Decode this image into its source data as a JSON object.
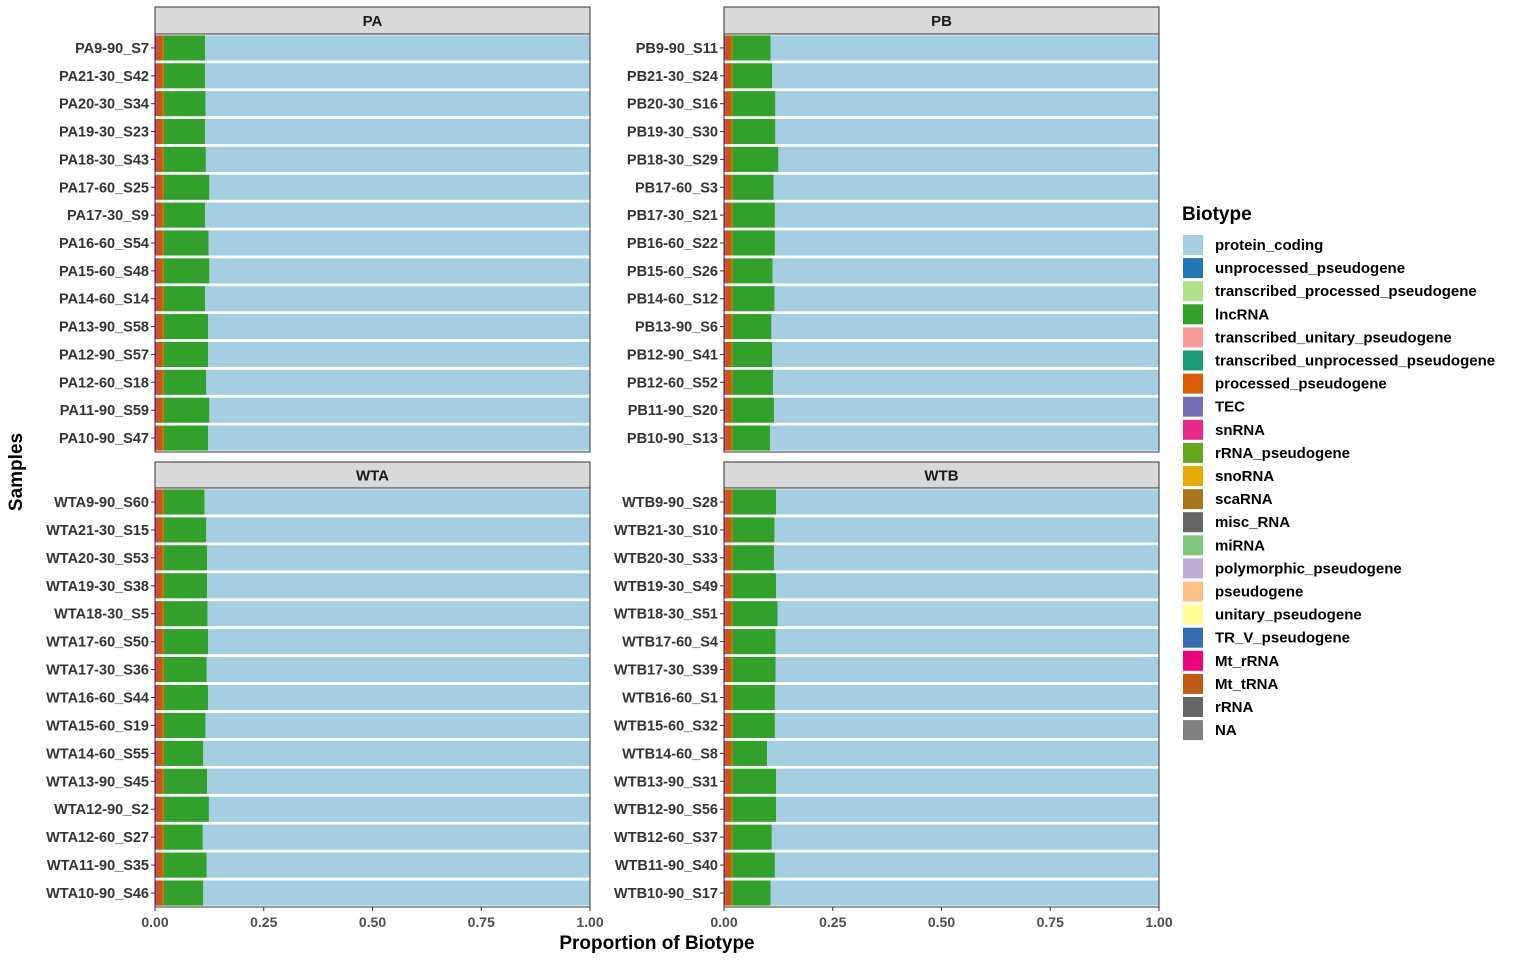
{
  "chart_data": {
    "type": "bar",
    "orientation": "horizontal",
    "stacked": true,
    "xlabel": "Proportion of Biotype",
    "ylabel": "Samples",
    "xlim": [
      0,
      1
    ],
    "x_ticks": [
      "0.00",
      "0.25",
      "0.50",
      "0.75",
      "1.00"
    ],
    "x_tick_values": [
      0,
      0.25,
      0.5,
      0.75,
      1.0
    ],
    "legend": {
      "title": "Biotype",
      "placement": "right",
      "items": [
        {
          "label": "protein_coding",
          "color": "#A6CEE3"
        },
        {
          "label": "unprocessed_pseudogene",
          "color": "#1F78B4"
        },
        {
          "label": "transcribed_processed_pseudogene",
          "color": "#B2DF8A"
        },
        {
          "label": "lncRNA",
          "color": "#33A02C"
        },
        {
          "label": "transcribed_unitary_pseudogene",
          "color": "#FB9A99"
        },
        {
          "label": "transcribed_unprocessed_pseudogene",
          "color": "#1B9E77"
        },
        {
          "label": "processed_pseudogene",
          "color": "#D95F02"
        },
        {
          "label": "TEC",
          "color": "#7570B3"
        },
        {
          "label": "snRNA",
          "color": "#E7298A"
        },
        {
          "label": "rRNA_pseudogene",
          "color": "#66A61E"
        },
        {
          "label": "snoRNA",
          "color": "#E6AB02"
        },
        {
          "label": "scaRNA",
          "color": "#A6761D"
        },
        {
          "label": "misc_RNA",
          "color": "#666666"
        },
        {
          "label": "miRNA",
          "color": "#7FC97F"
        },
        {
          "label": "polymorphic_pseudogene",
          "color": "#BEAED4"
        },
        {
          "label": "pseudogene",
          "color": "#FDC086"
        },
        {
          "label": "unitary_pseudogene",
          "color": "#FFFF99"
        },
        {
          "label": "TR_V_pseudogene",
          "color": "#386CB0"
        },
        {
          "label": "Mt_rRNA",
          "color": "#F0027F"
        },
        {
          "label": "Mt_tRNA",
          "color": "#BF5B17"
        },
        {
          "label": "rRNA",
          "color": "#666666"
        },
        {
          "label": "NA",
          "color": "#808080"
        }
      ]
    },
    "panels": [
      {
        "title": "PA",
        "samples": [
          {
            "name": "PA9-90_S7",
            "values": {
              "Mt_rRNA": 0.004,
              "Mt_tRNA": 0.012,
              "processed_pseudogene": 0.004,
              "lncRNA": 0.095,
              "protein_coding": 0.885
            }
          },
          {
            "name": "PA21-30_S42",
            "values": {
              "Mt_rRNA": 0.004,
              "Mt_tRNA": 0.012,
              "processed_pseudogene": 0.004,
              "lncRNA": 0.095,
              "protein_coding": 0.885
            }
          },
          {
            "name": "PA20-30_S34",
            "values": {
              "Mt_rRNA": 0.004,
              "Mt_tRNA": 0.012,
              "processed_pseudogene": 0.004,
              "lncRNA": 0.096,
              "protein_coding": 0.884
            }
          },
          {
            "name": "PA19-30_S23",
            "values": {
              "Mt_rRNA": 0.004,
              "Mt_tRNA": 0.012,
              "processed_pseudogene": 0.004,
              "lncRNA": 0.095,
              "protein_coding": 0.885
            }
          },
          {
            "name": "PA18-30_S43",
            "values": {
              "Mt_rRNA": 0.004,
              "Mt_tRNA": 0.012,
              "processed_pseudogene": 0.004,
              "lncRNA": 0.097,
              "protein_coding": 0.883
            }
          },
          {
            "name": "PA17-60_S25",
            "values": {
              "Mt_rRNA": 0.004,
              "Mt_tRNA": 0.012,
              "processed_pseudogene": 0.004,
              "lncRNA": 0.105,
              "protein_coding": 0.875
            }
          },
          {
            "name": "PA17-30_S9",
            "values": {
              "Mt_rRNA": 0.004,
              "Mt_tRNA": 0.012,
              "processed_pseudogene": 0.004,
              "lncRNA": 0.095,
              "protein_coding": 0.885
            }
          },
          {
            "name": "PA16-60_S54",
            "values": {
              "Mt_rRNA": 0.004,
              "Mt_tRNA": 0.012,
              "processed_pseudogene": 0.004,
              "lncRNA": 0.103,
              "protein_coding": 0.877
            }
          },
          {
            "name": "PA15-60_S48",
            "values": {
              "Mt_rRNA": 0.004,
              "Mt_tRNA": 0.012,
              "processed_pseudogene": 0.004,
              "lncRNA": 0.105,
              "protein_coding": 0.875
            }
          },
          {
            "name": "PA14-60_S14",
            "values": {
              "Mt_rRNA": 0.004,
              "Mt_tRNA": 0.012,
              "processed_pseudogene": 0.004,
              "lncRNA": 0.095,
              "protein_coding": 0.885
            }
          },
          {
            "name": "PA13-90_S58",
            "values": {
              "Mt_rRNA": 0.004,
              "Mt_tRNA": 0.012,
              "processed_pseudogene": 0.004,
              "lncRNA": 0.102,
              "protein_coding": 0.878
            }
          },
          {
            "name": "PA12-90_S57",
            "values": {
              "Mt_rRNA": 0.004,
              "Mt_tRNA": 0.012,
              "processed_pseudogene": 0.004,
              "lncRNA": 0.102,
              "protein_coding": 0.878
            }
          },
          {
            "name": "PA12-60_S18",
            "values": {
              "Mt_rRNA": 0.004,
              "Mt_tRNA": 0.012,
              "processed_pseudogene": 0.004,
              "lncRNA": 0.098,
              "protein_coding": 0.882
            }
          },
          {
            "name": "PA11-90_S59",
            "values": {
              "Mt_rRNA": 0.004,
              "Mt_tRNA": 0.012,
              "processed_pseudogene": 0.004,
              "lncRNA": 0.105,
              "protein_coding": 0.875
            }
          },
          {
            "name": "PA10-90_S47",
            "values": {
              "Mt_rRNA": 0.004,
              "Mt_tRNA": 0.012,
              "processed_pseudogene": 0.004,
              "lncRNA": 0.102,
              "protein_coding": 0.878
            }
          }
        ]
      },
      {
        "title": "PB",
        "samples": [
          {
            "name": "PB9-90_S11",
            "values": {
              "Mt_rRNA": 0.003,
              "Mt_tRNA": 0.012,
              "processed_pseudogene": 0.004,
              "lncRNA": 0.088,
              "protein_coding": 0.893
            }
          },
          {
            "name": "PB21-30_S24",
            "values": {
              "Mt_rRNA": 0.003,
              "Mt_tRNA": 0.012,
              "processed_pseudogene": 0.004,
              "lncRNA": 0.092,
              "protein_coding": 0.889
            }
          },
          {
            "name": "PB20-30_S16",
            "values": {
              "Mt_rRNA": 0.003,
              "Mt_tRNA": 0.012,
              "processed_pseudogene": 0.004,
              "lncRNA": 0.099,
              "protein_coding": 0.882
            }
          },
          {
            "name": "PB19-30_S30",
            "values": {
              "Mt_rRNA": 0.003,
              "Mt_tRNA": 0.012,
              "processed_pseudogene": 0.004,
              "lncRNA": 0.099,
              "protein_coding": 0.882
            }
          },
          {
            "name": "PB18-30_S29",
            "values": {
              "Mt_rRNA": 0.003,
              "Mt_tRNA": 0.012,
              "processed_pseudogene": 0.004,
              "lncRNA": 0.106,
              "protein_coding": 0.875
            }
          },
          {
            "name": "PB17-60_S3",
            "values": {
              "Mt_rRNA": 0.003,
              "Mt_tRNA": 0.012,
              "processed_pseudogene": 0.004,
              "lncRNA": 0.095,
              "protein_coding": 0.886
            }
          },
          {
            "name": "PB17-30_S21",
            "values": {
              "Mt_rRNA": 0.003,
              "Mt_tRNA": 0.012,
              "processed_pseudogene": 0.004,
              "lncRNA": 0.098,
              "protein_coding": 0.883
            }
          },
          {
            "name": "PB16-60_S22",
            "values": {
              "Mt_rRNA": 0.003,
              "Mt_tRNA": 0.012,
              "processed_pseudogene": 0.004,
              "lncRNA": 0.098,
              "protein_coding": 0.883
            }
          },
          {
            "name": "PB15-60_S26",
            "values": {
              "Mt_rRNA": 0.003,
              "Mt_tRNA": 0.012,
              "processed_pseudogene": 0.004,
              "lncRNA": 0.093,
              "protein_coding": 0.888
            }
          },
          {
            "name": "PB14-60_S12",
            "values": {
              "Mt_rRNA": 0.003,
              "Mt_tRNA": 0.012,
              "processed_pseudogene": 0.004,
              "lncRNA": 0.097,
              "protein_coding": 0.884
            }
          },
          {
            "name": "PB13-90_S6",
            "values": {
              "Mt_rRNA": 0.003,
              "Mt_tRNA": 0.012,
              "processed_pseudogene": 0.004,
              "lncRNA": 0.09,
              "protein_coding": 0.891
            }
          },
          {
            "name": "PB12-90_S41",
            "values": {
              "Mt_rRNA": 0.003,
              "Mt_tRNA": 0.012,
              "processed_pseudogene": 0.004,
              "lncRNA": 0.092,
              "protein_coding": 0.889
            }
          },
          {
            "name": "PB12-60_S52",
            "values": {
              "Mt_rRNA": 0.003,
              "Mt_tRNA": 0.012,
              "processed_pseudogene": 0.004,
              "lncRNA": 0.094,
              "protein_coding": 0.887
            }
          },
          {
            "name": "PB11-90_S20",
            "values": {
              "Mt_rRNA": 0.003,
              "Mt_tRNA": 0.012,
              "processed_pseudogene": 0.004,
              "lncRNA": 0.096,
              "protein_coding": 0.885
            }
          },
          {
            "name": "PB10-90_S13",
            "values": {
              "Mt_rRNA": 0.003,
              "Mt_tRNA": 0.012,
              "processed_pseudogene": 0.004,
              "lncRNA": 0.087,
              "protein_coding": 0.894
            }
          }
        ]
      },
      {
        "title": "WTA",
        "samples": [
          {
            "name": "WTA9-90_S60",
            "values": {
              "Mt_rRNA": 0.004,
              "Mt_tRNA": 0.012,
              "processed_pseudogene": 0.004,
              "lncRNA": 0.094,
              "protein_coding": 0.886
            }
          },
          {
            "name": "WTA21-30_S15",
            "values": {
              "Mt_rRNA": 0.004,
              "Mt_tRNA": 0.012,
              "processed_pseudogene": 0.004,
              "lncRNA": 0.098,
              "protein_coding": 0.882
            }
          },
          {
            "name": "WTA20-30_S53",
            "values": {
              "Mt_rRNA": 0.004,
              "Mt_tRNA": 0.012,
              "processed_pseudogene": 0.004,
              "lncRNA": 0.1,
              "protein_coding": 0.88
            }
          },
          {
            "name": "WTA19-30_S38",
            "values": {
              "Mt_rRNA": 0.004,
              "Mt_tRNA": 0.012,
              "processed_pseudogene": 0.004,
              "lncRNA": 0.1,
              "protein_coding": 0.88
            }
          },
          {
            "name": "WTA18-30_S5",
            "values": {
              "Mt_rRNA": 0.004,
              "Mt_tRNA": 0.012,
              "processed_pseudogene": 0.004,
              "lncRNA": 0.101,
              "protein_coding": 0.879
            }
          },
          {
            "name": "WTA17-60_S50",
            "values": {
              "Mt_rRNA": 0.004,
              "Mt_tRNA": 0.012,
              "processed_pseudogene": 0.004,
              "lncRNA": 0.102,
              "protein_coding": 0.878
            }
          },
          {
            "name": "WTA17-30_S36",
            "values": {
              "Mt_rRNA": 0.004,
              "Mt_tRNA": 0.012,
              "processed_pseudogene": 0.004,
              "lncRNA": 0.099,
              "protein_coding": 0.881
            }
          },
          {
            "name": "WTA16-60_S44",
            "values": {
              "Mt_rRNA": 0.004,
              "Mt_tRNA": 0.012,
              "processed_pseudogene": 0.004,
              "lncRNA": 0.102,
              "protein_coding": 0.878
            }
          },
          {
            "name": "WTA15-60_S19",
            "values": {
              "Mt_rRNA": 0.004,
              "Mt_tRNA": 0.012,
              "processed_pseudogene": 0.004,
              "lncRNA": 0.096,
              "protein_coding": 0.884
            }
          },
          {
            "name": "WTA14-60_S55",
            "values": {
              "Mt_rRNA": 0.004,
              "Mt_tRNA": 0.012,
              "processed_pseudogene": 0.004,
              "lncRNA": 0.091,
              "protein_coding": 0.889
            }
          },
          {
            "name": "WTA13-90_S45",
            "values": {
              "Mt_rRNA": 0.004,
              "Mt_tRNA": 0.012,
              "processed_pseudogene": 0.004,
              "lncRNA": 0.1,
              "protein_coding": 0.88
            }
          },
          {
            "name": "WTA12-90_S2",
            "values": {
              "Mt_rRNA": 0.004,
              "Mt_tRNA": 0.012,
              "processed_pseudogene": 0.004,
              "lncRNA": 0.104,
              "protein_coding": 0.876
            }
          },
          {
            "name": "WTA12-60_S27",
            "values": {
              "Mt_rRNA": 0.004,
              "Mt_tRNA": 0.012,
              "processed_pseudogene": 0.004,
              "lncRNA": 0.09,
              "protein_coding": 0.89
            }
          },
          {
            "name": "WTA11-90_S35",
            "values": {
              "Mt_rRNA": 0.004,
              "Mt_tRNA": 0.012,
              "processed_pseudogene": 0.004,
              "lncRNA": 0.099,
              "protein_coding": 0.881
            }
          },
          {
            "name": "WTA10-90_S46",
            "values": {
              "Mt_rRNA": 0.004,
              "Mt_tRNA": 0.012,
              "processed_pseudogene": 0.004,
              "lncRNA": 0.091,
              "protein_coding": 0.889
            }
          }
        ]
      },
      {
        "title": "WTB",
        "samples": [
          {
            "name": "WTB9-90_S28",
            "values": {
              "Mt_rRNA": 0.003,
              "Mt_tRNA": 0.012,
              "processed_pseudogene": 0.004,
              "lncRNA": 0.101,
              "protein_coding": 0.88
            }
          },
          {
            "name": "WTB21-30_S10",
            "values": {
              "Mt_rRNA": 0.003,
              "Mt_tRNA": 0.012,
              "processed_pseudogene": 0.004,
              "lncRNA": 0.097,
              "protein_coding": 0.884
            }
          },
          {
            "name": "WTB20-30_S33",
            "values": {
              "Mt_rRNA": 0.003,
              "Mt_tRNA": 0.012,
              "processed_pseudogene": 0.004,
              "lncRNA": 0.096,
              "protein_coding": 0.885
            }
          },
          {
            "name": "WTB19-30_S49",
            "values": {
              "Mt_rRNA": 0.003,
              "Mt_tRNA": 0.012,
              "processed_pseudogene": 0.004,
              "lncRNA": 0.101,
              "protein_coding": 0.88
            }
          },
          {
            "name": "WTB18-30_S51",
            "values": {
              "Mt_rRNA": 0.003,
              "Mt_tRNA": 0.012,
              "processed_pseudogene": 0.004,
              "lncRNA": 0.104,
              "protein_coding": 0.877
            }
          },
          {
            "name": "WTB17-60_S4",
            "values": {
              "Mt_rRNA": 0.003,
              "Mt_tRNA": 0.012,
              "processed_pseudogene": 0.004,
              "lncRNA": 0.1,
              "protein_coding": 0.881
            }
          },
          {
            "name": "WTB17-30_S39",
            "values": {
              "Mt_rRNA": 0.003,
              "Mt_tRNA": 0.012,
              "processed_pseudogene": 0.004,
              "lncRNA": 0.1,
              "protein_coding": 0.881
            }
          },
          {
            "name": "WTB16-60_S1",
            "values": {
              "Mt_rRNA": 0.003,
              "Mt_tRNA": 0.012,
              "processed_pseudogene": 0.004,
              "lncRNA": 0.098,
              "protein_coding": 0.883
            }
          },
          {
            "name": "WTB15-60_S32",
            "values": {
              "Mt_rRNA": 0.003,
              "Mt_tRNA": 0.012,
              "processed_pseudogene": 0.004,
              "lncRNA": 0.098,
              "protein_coding": 0.883
            }
          },
          {
            "name": "WTB14-60_S8",
            "values": {
              "Mt_rRNA": 0.003,
              "Mt_tRNA": 0.012,
              "processed_pseudogene": 0.004,
              "lncRNA": 0.08,
              "protein_coding": 0.901
            }
          },
          {
            "name": "WTB13-90_S31",
            "values": {
              "Mt_rRNA": 0.003,
              "Mt_tRNA": 0.012,
              "processed_pseudogene": 0.004,
              "lncRNA": 0.101,
              "protein_coding": 0.88
            }
          },
          {
            "name": "WTB12-90_S56",
            "values": {
              "Mt_rRNA": 0.003,
              "Mt_tRNA": 0.012,
              "processed_pseudogene": 0.004,
              "lncRNA": 0.101,
              "protein_coding": 0.88
            }
          },
          {
            "name": "WTB12-60_S37",
            "values": {
              "Mt_rRNA": 0.003,
              "Mt_tRNA": 0.012,
              "processed_pseudogene": 0.004,
              "lncRNA": 0.091,
              "protein_coding": 0.89
            }
          },
          {
            "name": "WTB11-90_S40",
            "values": {
              "Mt_rRNA": 0.003,
              "Mt_tRNA": 0.012,
              "processed_pseudogene": 0.004,
              "lncRNA": 0.098,
              "protein_coding": 0.883
            }
          },
          {
            "name": "WTB10-90_S17",
            "values": {
              "Mt_rRNA": 0.003,
              "Mt_tRNA": 0.012,
              "processed_pseudogene": 0.004,
              "lncRNA": 0.088,
              "protein_coding": 0.893
            }
          }
        ]
      }
    ],
    "stack_order": [
      "Mt_rRNA",
      "Mt_tRNA",
      "processed_pseudogene",
      "lncRNA",
      "protein_coding"
    ]
  }
}
